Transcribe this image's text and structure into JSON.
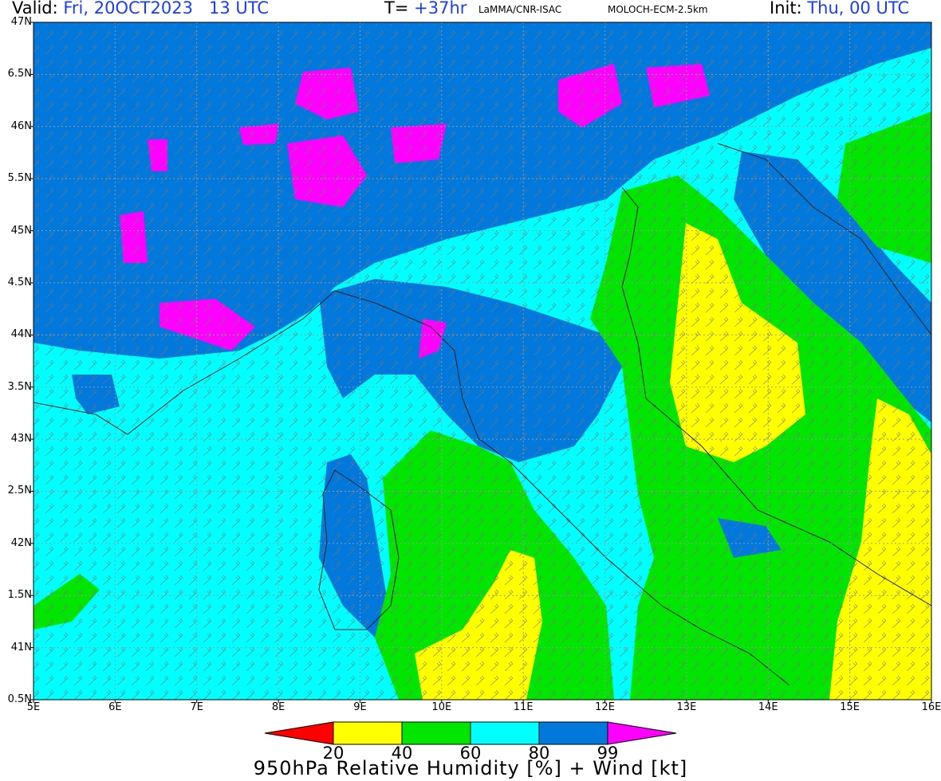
{
  "header": {
    "valid_label": "Valid:",
    "valid_value": "Fri, 20OCT2023   13 UTC",
    "t_label": "T=",
    "t_value": "+37hr",
    "source": "LaMMA/CNR-ISAC",
    "model": "MOLOCH-ECM-2.5km",
    "init_label": "Init:",
    "init_value": "Thu, 00 UTC"
  },
  "map": {
    "lat_labels": [
      "47N",
      "6.5N",
      "46N",
      "5.5N",
      "45N",
      "4.5N",
      "44N",
      "3.5N",
      "43N",
      "2.5N",
      "42N",
      "1.5N",
      "41N",
      "0.5N"
    ],
    "lon_labels": [
      "5E",
      "6E",
      "7E",
      "8E",
      "9E",
      "10E",
      "11E",
      "12E",
      "13E",
      "14E",
      "15E",
      "16E"
    ],
    "extent": {
      "lon": [
        5,
        16
      ],
      "lat": [
        40.5,
        47
      ]
    }
  },
  "colorbar": {
    "title": "950hPa Relative Humidity [%] + Wind [kt]",
    "ticks": [
      "20",
      "40",
      "60",
      "80",
      "99"
    ],
    "colors": [
      "#ff0000",
      "#ffff00",
      "#00e600",
      "#00ffff",
      "#0078dc",
      "#ff00ff"
    ]
  }
}
